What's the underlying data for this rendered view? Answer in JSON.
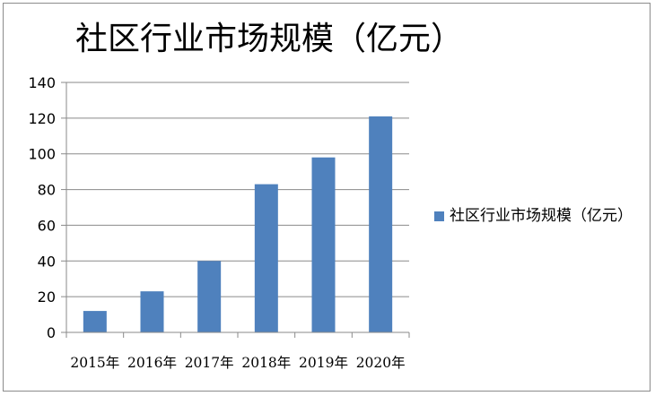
{
  "chart_data": {
    "type": "bar",
    "title": "社区行业市场规模（亿元）",
    "categories": [
      "2015年",
      "2016年",
      "2017年",
      "2018年",
      "2019年",
      "2020年"
    ],
    "series": [
      {
        "name": "社区行业市场规模（亿元）",
        "values": [
          12,
          23,
          40,
          83,
          98,
          121
        ]
      }
    ],
    "xlabel": "",
    "ylabel": "",
    "ylim": [
      0,
      140
    ],
    "yticks": [
      "0",
      "20",
      "40",
      "60",
      "80",
      "100",
      "120",
      "140"
    ],
    "grid": true,
    "legend_position": "right",
    "bar_color": "#4f81bd"
  }
}
